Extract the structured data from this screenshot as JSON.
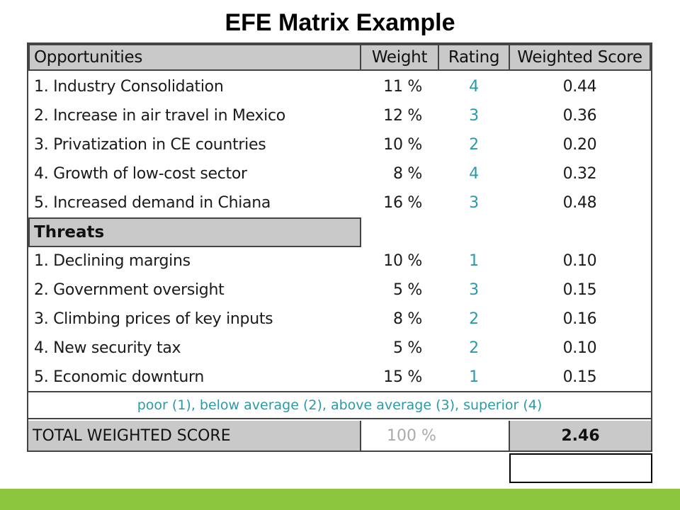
{
  "title": "EFE Matrix Example",
  "headers": {
    "factor": "Opportunities",
    "weight": "Weight",
    "rating": "Rating",
    "score": "Weighted Score"
  },
  "opportunities": [
    {
      "factor": "1. Industry Consolidation",
      "weight": "11 %",
      "rating": "4",
      "score": "0.44"
    },
    {
      "factor": "2. Increase in air travel in Mexico",
      "weight": "12 %",
      "rating": "3",
      "score": "0.36"
    },
    {
      "factor": "3. Privatization in CE countries",
      "weight": "10 %",
      "rating": "2",
      "score": "0.20"
    },
    {
      "factor": "4. Growth of low-cost sector",
      "weight": "8 %",
      "rating": "4",
      "score": "0.32"
    },
    {
      "factor": "5. Increased demand in Chiana",
      "weight": "16 %",
      "rating": "3",
      "score": "0.48"
    }
  ],
  "threats_label": "Threats",
  "threats": [
    {
      "factor": "1. Declining margins",
      "weight": "10 %",
      "rating": "1",
      "score": "0.10"
    },
    {
      "factor": "2. Government oversight",
      "weight": "5 %",
      "rating": "3",
      "score": "0.15"
    },
    {
      "factor": "3. Climbing prices of key inputs",
      "weight": "8 %",
      "rating": "2",
      "score": "0.16"
    },
    {
      "factor": "4. New security tax",
      "weight": "5 %",
      "rating": "2",
      "score": "0.10"
    },
    {
      "factor": "5. Economic downturn",
      "weight": "15 %",
      "rating": "1",
      "score": "0.15"
    }
  ],
  "legend": "poor (1), below average (2), above average (3), superior (4)",
  "total": {
    "label": "TOTAL WEIGHTED SCORE",
    "weight": "100 %",
    "score": "2.46"
  },
  "colors": {
    "header_bg": "#c9c9c9",
    "rating_text": "#2a9aa8",
    "footer_bar": "#8cc63f"
  }
}
